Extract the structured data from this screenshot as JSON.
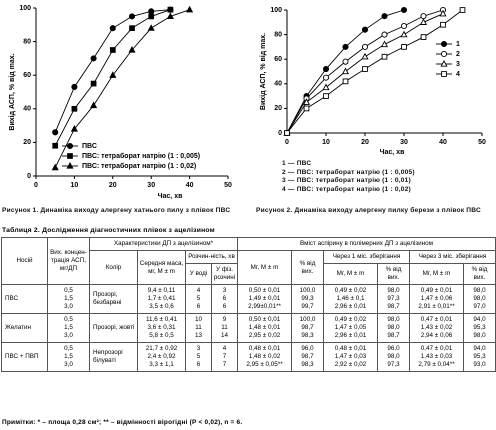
{
  "chart_data": [
    {
      "type": "line",
      "x_label": "Час, хв",
      "y_label": "Вихід АСП, % від max.",
      "x": [
        5,
        10,
        15,
        20,
        25,
        30,
        35,
        40
      ],
      "series": [
        {
          "name": "ПВС",
          "color": "#000000",
          "marker": "circle",
          "filled": true,
          "values": [
            26,
            53,
            70,
            88,
            95,
            98,
            99,
            null
          ]
        },
        {
          "name": "ПВС: тетраборат натрію (1 : 0,005)",
          "color": "#000000",
          "marker": "square",
          "filled": true,
          "values": [
            18,
            40,
            55,
            75,
            88,
            95,
            99,
            null
          ]
        },
        {
          "name": "ПВС: тетраборат натрію (1 : 0,02)",
          "color": "#000000",
          "marker": "triangle",
          "filled": true,
          "values": [
            5,
            28,
            42,
            60,
            75,
            88,
            95,
            99
          ]
        }
      ],
      "xlim": [
        0,
        50
      ],
      "ylim": [
        0,
        100
      ],
      "xticks": [
        0,
        10,
        20,
        30,
        40,
        50
      ],
      "yticks": [
        0,
        20,
        40,
        60,
        80,
        100
      ],
      "legend": "lower right"
    },
    {
      "type": "line",
      "x_label": "Час, хв",
      "y_label": "Вихід АСП, % від max.",
      "x": [
        0,
        5,
        10,
        15,
        20,
        25,
        30,
        35,
        40,
        45
      ],
      "series": [
        {
          "name": "1",
          "color": "#000000",
          "marker": "circle",
          "filled": true,
          "values": [
            0,
            30,
            52,
            70,
            84,
            95,
            100,
            null,
            null,
            null
          ]
        },
        {
          "name": "2",
          "color": "#000000",
          "marker": "circle",
          "filled": false,
          "values": [
            0,
            28,
            45,
            58,
            70,
            80,
            87,
            95,
            100,
            null
          ]
        },
        {
          "name": "3",
          "color": "#000000",
          "marker": "triangle",
          "filled": false,
          "values": [
            0,
            25,
            37,
            50,
            62,
            72,
            80,
            90,
            97,
            null
          ]
        },
        {
          "name": "4",
          "color": "#000000",
          "marker": "square",
          "filled": false,
          "values": [
            0,
            20,
            30,
            42,
            52,
            62,
            70,
            78,
            88,
            100
          ]
        }
      ],
      "xlim": [
        0,
        50
      ],
      "ylim": [
        0,
        100
      ],
      "xticks": [
        0,
        10,
        20,
        30,
        40,
        50
      ],
      "yticks": [
        0,
        20,
        40,
        60,
        80,
        100
      ],
      "legend": "upper right"
    }
  ],
  "figure_key": [
    "1 — ПВС",
    "2 — ПВС: тетраборат натрію (1 : 0,005)",
    "3 — ПВС: тетраборат натрію (1 : 0,01)",
    "4 — ПВС: тетраборат натрію (1 : 0,02)"
  ],
  "figure_captions": [
    "Рисунок 1. Динаміка виходу алергену хатнього пилу з плівок ПВС",
    "Рисунок 2. Динаміка виходу алергену пилку берези з плівок ПВС"
  ],
  "table": {
    "title": "Таблиця 2. Дослідження діагностичних плівок з ацелізином",
    "header": [
      "Носій",
      "Вих. концен-трація АСП, мг/ДП",
      "Характеристики ДП з ацелізином*",
      "Колір",
      "Середня маса, мг, M ± m",
      "Розчин-ність, хв",
      "У воді",
      "У фіз. розчині",
      "Вміст аспірину в полімерних ДП з ацелізином",
      "Мг, M ± m",
      "% від вих.",
      "Через 1 міс. зберігання",
      "Мг, M ± m",
      "% від вих.",
      "Через 3 міс. зберігання",
      "Мг, M ± m",
      "% від вих."
    ],
    "rows": [
      [
        "ПВС",
        [
          "0,5",
          "1,5",
          "3,0"
        ],
        "Прозорі, безбарвні",
        [
          "9,4 ± 0,11",
          "1,7 ± 0,41",
          "3,5 ± 0,6"
        ],
        [
          "4",
          "5",
          "6"
        ],
        [
          "3",
          "6",
          "6"
        ],
        [
          "0,50 ± 0,01",
          "1,49 ± 0,01",
          "2,99±0,01**"
        ],
        [
          "100,0",
          "99,3",
          "99,7"
        ],
        [
          "0,49 ± 0,02",
          "1,46 ± 0,1",
          "2,96 ± 0,01"
        ],
        [
          "98,0",
          "97,3",
          "98,7"
        ],
        [
          "0,49 ± 0,01",
          "1,47 ± 0,06",
          "2,91 ± 0,01**"
        ],
        [
          "98,0",
          "98,0",
          "97,0"
        ]
      ],
      [
        "Желатин",
        [
          "0,5",
          "1,5",
          "3,0"
        ],
        "Прозорі, жовті",
        [
          "11,6 ± 0,41",
          "3,6 ± 0,31",
          "5,8 ± 0,5"
        ],
        [
          "10",
          "11",
          "13"
        ],
        [
          "9",
          "11",
          "14"
        ],
        [
          "0,50 ± 0,01",
          "1,48 ± 0,01",
          "2,95 ± 0,02"
        ],
        [
          "100,0",
          "98,7",
          "98,3"
        ],
        [
          "0,49 ± 0,02",
          "1,47 ± 0,05",
          "2,96 ± 0,01"
        ],
        [
          "98,0",
          "98,0",
          "98,7"
        ],
        [
          "0,47 ± 0,01",
          "1,43 ± 0,02",
          "2,94 ± 0,06"
        ],
        [
          "94,0",
          "95,3",
          "98,0"
        ]
      ],
      [
        "ПВС + ПВП",
        [
          "0,5",
          "1,5",
          "3,0"
        ],
        "Непрозорі білуваті",
        [
          "21,7 ± 0,92",
          "2,4 ± 0,92",
          "3,3 ± 1,1"
        ],
        [
          "3",
          "5",
          "6"
        ],
        [
          "4",
          "7",
          "7"
        ],
        [
          "0,48 ± 0,01",
          "1,48 ± 0,02",
          "2,95 ± 0,05**"
        ],
        [
          "96,0",
          "98,7",
          "98,3"
        ],
        [
          "0,48 ± 0,01",
          "1,47 ± 0,03",
          "2,92 ± 0,02"
        ],
        [
          "96,0",
          "98,0",
          "97,3"
        ],
        [
          "0,47 ± 0,01",
          "1,43 ± 0,03",
          "2,79 ± 0,04**"
        ],
        [
          "94,0",
          "95,3",
          "93,0"
        ]
      ]
    ],
    "footnote": "Примітки: * – площа 0,28 см²; ** – відмінності вірогідні (Р < 0,02), n = 6."
  }
}
